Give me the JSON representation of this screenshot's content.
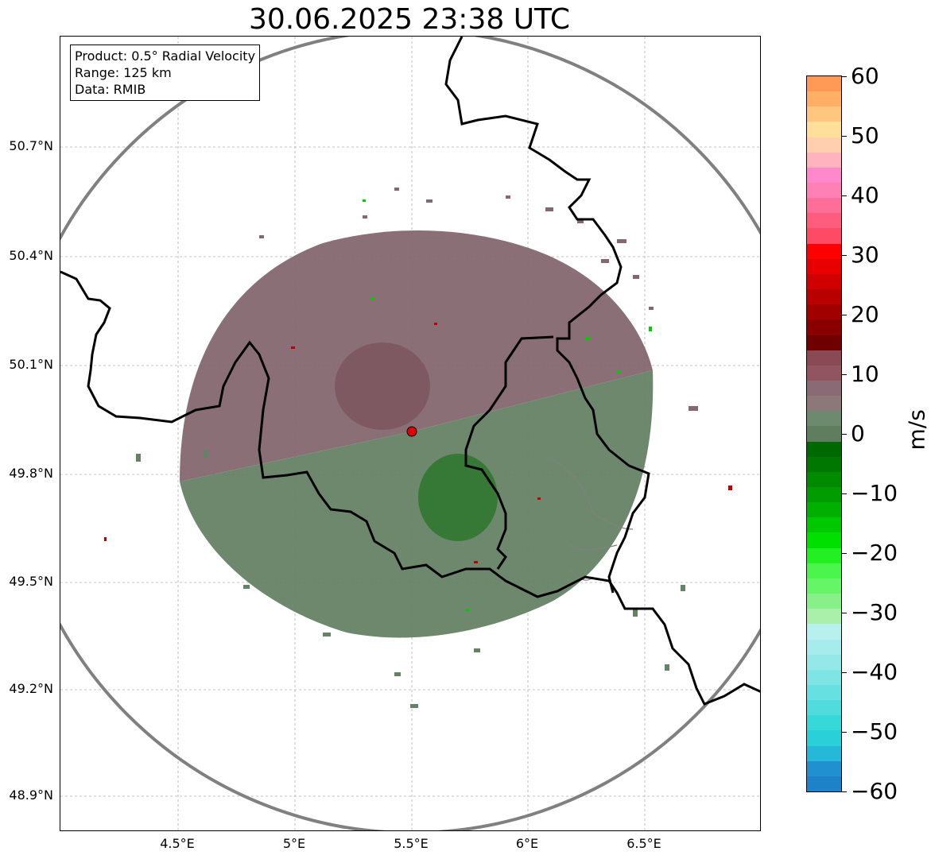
{
  "title": "30.06.2025 23:38 UTC",
  "info": {
    "product": "Product: 0.5° Radial Velocity",
    "range": "Range: 125 km",
    "data": "Data: RMIB"
  },
  "lat_labels": [
    "50.7°N",
    "50.4°N",
    "50.1°N",
    "49.8°N",
    "49.5°N",
    "49.2°N",
    "48.9°N"
  ],
  "lon_labels": [
    "4.5°E",
    "5°E",
    "5.5°E",
    "6°E",
    "6.5°E"
  ],
  "colorbar": {
    "unit": "m/s",
    "ticks": [
      "60",
      "50",
      "40",
      "30",
      "20",
      "10",
      "0",
      "−10",
      "−20",
      "−30",
      "−40",
      "−50",
      "−60"
    ],
    "colors": [
      "#ff9955",
      "#ffb066",
      "#ffc680",
      "#ffdf99",
      "#ffcfb0",
      "#ffb3be",
      "#ff88cc",
      "#ff80b4",
      "#ff6e99",
      "#ff5c7e",
      "#ff4a66",
      "#ff0000",
      "#e80000",
      "#d00000",
      "#b80000",
      "#a00000",
      "#880000",
      "#700000",
      "#8a4a55",
      "#905560",
      "#8a6a75",
      "#8c7878",
      "#6e8a6e",
      "#5e7e5e",
      "#006800",
      "#007800",
      "#008a00",
      "#009c00",
      "#00b000",
      "#00c800",
      "#00e000",
      "#22f022",
      "#4cf54c",
      "#66f566",
      "#88f088",
      "#aaf0aa",
      "#b8f0f0",
      "#a6ecec",
      "#94e8e8",
      "#7ee4e4",
      "#66e0e0",
      "#50dcdc",
      "#36d8d8",
      "#2ad0d8",
      "#26b8d8",
      "#2090d0",
      "#1e82c8"
    ]
  },
  "radar": {
    "site": "RMIB radar",
    "colors": {
      "approach": "#84686f",
      "recede": "#668266",
      "strong_away": "#006400",
      "strong_toward": "#b00000",
      "range_ring": "#808080",
      "border": "#000000"
    }
  }
}
